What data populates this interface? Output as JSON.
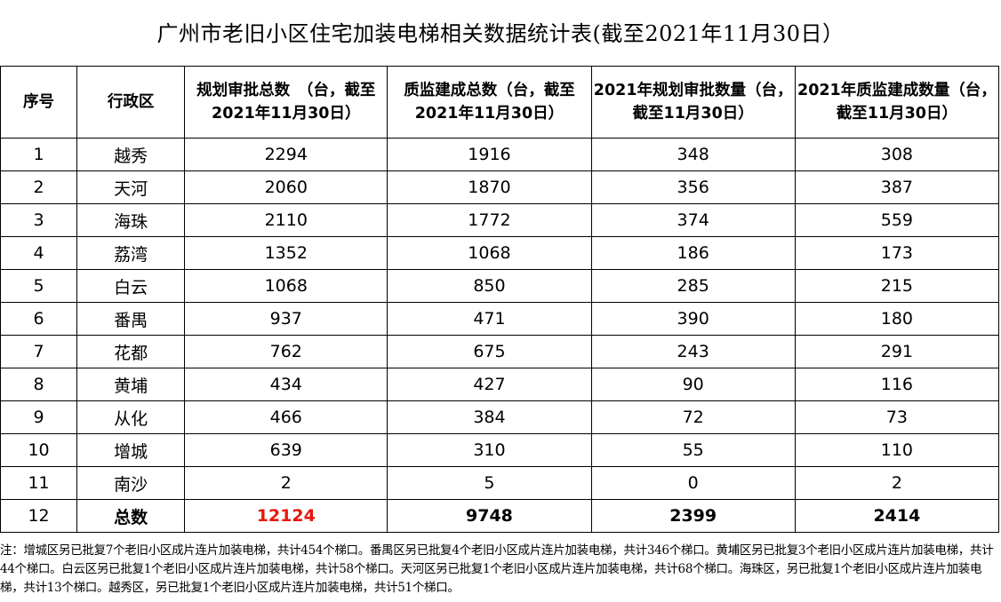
{
  "title": "广州市老旧小区住宅加装电梯相关数据统计表(截至2021年11月30日）",
  "headers": {
    "no": "序号",
    "district": "行政区",
    "planned_total": "规划审批总数　（台，截至2021年11月30日）",
    "built_total": "质监建成总数（台，截至2021年11月30日）",
    "planned_2021": "2021年规划审批数量（台，截至11月30日）",
    "built_2021": "2021年质监建成数量（台，截至11月30日）"
  },
  "rows": [
    {
      "no": "1",
      "district": "越秀",
      "planned_total": "2294",
      "built_total": "1916",
      "planned_2021": "348",
      "built_2021": "308"
    },
    {
      "no": "2",
      "district": "天河",
      "planned_total": "2060",
      "built_total": "1870",
      "planned_2021": "356",
      "built_2021": "387"
    },
    {
      "no": "3",
      "district": "海珠",
      "planned_total": "2110",
      "built_total": "1772",
      "planned_2021": "374",
      "built_2021": "559"
    },
    {
      "no": "4",
      "district": "荔湾",
      "planned_total": "1352",
      "built_total": "1068",
      "planned_2021": "186",
      "built_2021": "173"
    },
    {
      "no": "5",
      "district": "白云",
      "planned_total": "1068",
      "built_total": "850",
      "planned_2021": "285",
      "built_2021": "215"
    },
    {
      "no": "6",
      "district": "番禺",
      "planned_total": "937",
      "built_total": "471",
      "planned_2021": "390",
      "built_2021": "180"
    },
    {
      "no": "7",
      "district": "花都",
      "planned_total": "762",
      "built_total": "675",
      "planned_2021": "243",
      "built_2021": "291"
    },
    {
      "no": "8",
      "district": "黄埔",
      "planned_total": "434",
      "built_total": "427",
      "planned_2021": "90",
      "built_2021": "116"
    },
    {
      "no": "9",
      "district": "从化",
      "planned_total": "466",
      "built_total": "384",
      "planned_2021": "72",
      "built_2021": "73"
    },
    {
      "no": "10",
      "district": "增城",
      "planned_total": "639",
      "built_total": "310",
      "planned_2021": "55",
      "built_2021": "110"
    },
    {
      "no": "11",
      "district": "南沙",
      "planned_total": "2",
      "built_total": "5",
      "planned_2021": "0",
      "built_2021": "2"
    }
  ],
  "total": {
    "no": "12",
    "district": "总数",
    "planned_total": "12124",
    "built_total": "9748",
    "planned_2021": "2399",
    "built_2021": "2414"
  },
  "colors": {
    "total_highlight": "#e8160c"
  },
  "note": "注：增城区另已批复7个老旧小区成片连片加装电梯，共计454个梯口。番禺区另已批复4个老旧小区成片连片加装电梯，共计346个梯口。黄埔区另已批复3个老旧小区成片连片加装电梯，共计44个梯口。白云区另已批复1个老旧小区成片连片加装电梯，共计58个梯口。天河区另已批复1个老旧小区成片连片加装电梯，共计68个梯口。海珠区，另已批复1个老旧小区成片连片加装电梯，共计13个梯口。越秀区，另已批复1个老旧小区成片连片加装电梯，共计51个梯口。"
}
